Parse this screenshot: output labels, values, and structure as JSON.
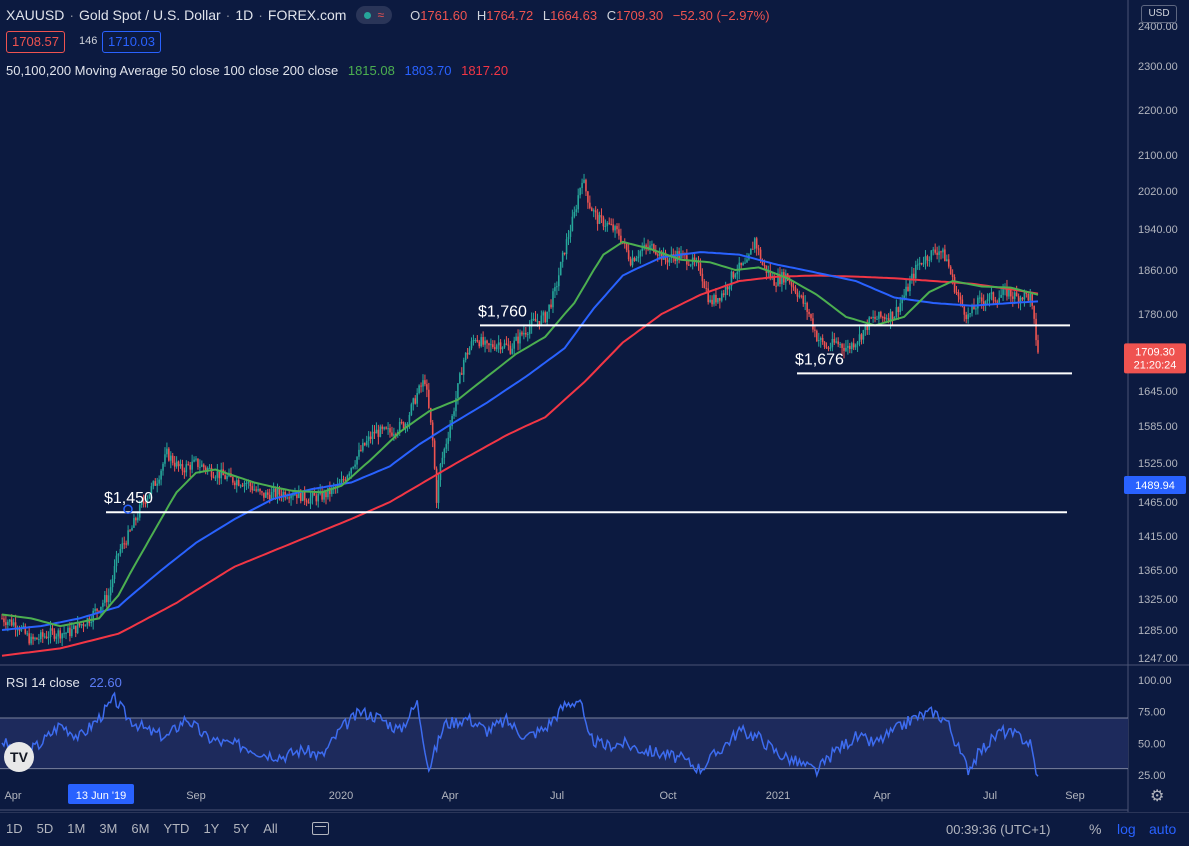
{
  "header": {
    "symbol": "XAUUSD",
    "name": "Gold Spot / U.S. Dollar",
    "interval": "1D",
    "source": "FOREX.com",
    "ohlc": {
      "o_label": "O",
      "o": "1761.60",
      "h_label": "H",
      "h": "1764.72",
      "l_label": "L",
      "l": "1664.63",
      "c_label": "C",
      "c": "1709.30",
      "change": "−52.30 (−2.97%)"
    },
    "bid": "1708.57",
    "spread": "146",
    "ask": "1710.03"
  },
  "indicators": {
    "ma_label": "50,100,200 Moving Average 50 close 100 close 200 close",
    "ma50_value": "1815.08",
    "ma100_value": "1803.70",
    "ma200_value": "1817.20",
    "rsi_label": "RSI 14 close",
    "rsi_value": "22.60"
  },
  "currency_button": "USD",
  "colors": {
    "background": "#0c1a40",
    "up": "#26a69a",
    "down": "#ef5350",
    "ma50": "#4caf50",
    "ma100": "#2962ff",
    "ma200": "#f23645",
    "rsi": "#3d6cf0",
    "level_lines": "#ffffff"
  },
  "chart_data": {
    "type": "candlestick",
    "x_axis_labels": [
      "Apr",
      "13 Jun '19",
      "Sep",
      "2020",
      "Apr",
      "Jul",
      "Oct",
      "2021",
      "Apr",
      "Jul",
      "Sep"
    ],
    "y_axis_ticks": [
      "2400.00",
      "2300.00",
      "2200.00",
      "2100.00",
      "2020.00",
      "1940.00",
      "1860.00",
      "1780.00",
      "1645.00",
      "1585.00",
      "1525.00",
      "1465.00",
      "1415.00",
      "1365.00",
      "1325.00",
      "1285.00",
      "1247.00"
    ],
    "current_price_label": "1709.30",
    "countdown_label": "21:20:24",
    "crosshair_price_label": "1489.94",
    "price_path": [
      [
        0,
        1300
      ],
      [
        8,
        1292
      ],
      [
        15,
        1270
      ],
      [
        25,
        1280
      ],
      [
        35,
        1282
      ],
      [
        45,
        1300
      ],
      [
        55,
        1330
      ],
      [
        60,
        1390
      ],
      [
        66,
        1420
      ],
      [
        72,
        1460
      ],
      [
        80,
        1500
      ],
      [
        85,
        1540
      ],
      [
        92,
        1515
      ],
      [
        100,
        1525
      ],
      [
        110,
        1510
      ],
      [
        118,
        1500
      ],
      [
        126,
        1495
      ],
      [
        134,
        1475
      ],
      [
        142,
        1478
      ],
      [
        150,
        1480
      ],
      [
        158,
        1470
      ],
      [
        166,
        1475
      ],
      [
        174,
        1490
      ],
      [
        180,
        1520
      ],
      [
        186,
        1550
      ],
      [
        192,
        1575
      ],
      [
        200,
        1575
      ],
      [
        208,
        1590
      ],
      [
        214,
        1640
      ],
      [
        218,
        1665
      ],
      [
        222,
        1560
      ],
      [
        224,
        1470
      ],
      [
        226,
        1520
      ],
      [
        232,
        1600
      ],
      [
        238,
        1700
      ],
      [
        244,
        1740
      ],
      [
        250,
        1720
      ],
      [
        256,
        1730
      ],
      [
        262,
        1720
      ],
      [
        268,
        1745
      ],
      [
        274,
        1765
      ],
      [
        280,
        1775
      ],
      [
        285,
        1820
      ],
      [
        290,
        1900
      ],
      [
        295,
        1970
      ],
      [
        299,
        2050
      ],
      [
        303,
        1990
      ],
      [
        307,
        1960
      ],
      [
        312,
        1950
      ],
      [
        318,
        1930
      ],
      [
        324,
        1880
      ],
      [
        330,
        1900
      ],
      [
        336,
        1905
      ],
      [
        342,
        1880
      ],
      [
        348,
        1890
      ],
      [
        354,
        1880
      ],
      [
        360,
        1860
      ],
      [
        365,
        1800
      ],
      [
        372,
        1820
      ],
      [
        378,
        1860
      ],
      [
        384,
        1870
      ],
      [
        388,
        1920
      ],
      [
        392,
        1870
      ],
      [
        398,
        1840
      ],
      [
        404,
        1850
      ],
      [
        410,
        1820
      ],
      [
        416,
        1780
      ],
      [
        420,
        1740
      ],
      [
        425,
        1720
      ],
      [
        430,
        1730
      ],
      [
        436,
        1720
      ],
      [
        442,
        1740
      ],
      [
        448,
        1770
      ],
      [
        454,
        1775
      ],
      [
        460,
        1780
      ],
      [
        466,
        1820
      ],
      [
        472,
        1870
      ],
      [
        478,
        1890
      ],
      [
        483,
        1900
      ],
      [
        487,
        1880
      ],
      [
        490,
        1840
      ],
      [
        494,
        1800
      ],
      [
        498,
        1775
      ],
      [
        503,
        1800
      ],
      [
        508,
        1810
      ],
      [
        513,
        1810
      ],
      [
        518,
        1820
      ],
      [
        523,
        1810
      ],
      [
        527,
        1815
      ],
      [
        530,
        1810
      ],
      [
        534,
        1715
      ]
    ],
    "ma50_path": [
      [
        0,
        1305
      ],
      [
        15,
        1300
      ],
      [
        30,
        1290
      ],
      [
        50,
        1300
      ],
      [
        60,
        1330
      ],
      [
        70,
        1380
      ],
      [
        80,
        1430
      ],
      [
        90,
        1480
      ],
      [
        100,
        1510
      ],
      [
        110,
        1515
      ],
      [
        120,
        1505
      ],
      [
        130,
        1495
      ],
      [
        140,
        1488
      ],
      [
        150,
        1482
      ],
      [
        165,
        1480
      ],
      [
        175,
        1490
      ],
      [
        190,
        1530
      ],
      [
        205,
        1575
      ],
      [
        220,
        1610
      ],
      [
        235,
        1630
      ],
      [
        250,
        1670
      ],
      [
        265,
        1710
      ],
      [
        280,
        1740
      ],
      [
        295,
        1800
      ],
      [
        310,
        1890
      ],
      [
        320,
        1915
      ],
      [
        335,
        1900
      ],
      [
        350,
        1880
      ],
      [
        365,
        1875
      ],
      [
        378,
        1860
      ],
      [
        390,
        1865
      ],
      [
        405,
        1845
      ],
      [
        420,
        1815
      ],
      [
        435,
        1775
      ],
      [
        450,
        1760
      ],
      [
        465,
        1775
      ],
      [
        478,
        1820
      ],
      [
        490,
        1840
      ],
      [
        505,
        1830
      ],
      [
        520,
        1828
      ],
      [
        534,
        1815
      ]
    ],
    "ma100_path": [
      [
        0,
        1285
      ],
      [
        20,
        1290
      ],
      [
        40,
        1300
      ],
      [
        60,
        1315
      ],
      [
        80,
        1360
      ],
      [
        100,
        1405
      ],
      [
        120,
        1440
      ],
      [
        140,
        1470
      ],
      [
        160,
        1485
      ],
      [
        180,
        1495
      ],
      [
        200,
        1520
      ],
      [
        215,
        1555
      ],
      [
        230,
        1585
      ],
      [
        250,
        1625
      ],
      [
        270,
        1670
      ],
      [
        290,
        1720
      ],
      [
        305,
        1790
      ],
      [
        320,
        1850
      ],
      [
        340,
        1885
      ],
      [
        360,
        1895
      ],
      [
        380,
        1890
      ],
      [
        400,
        1870
      ],
      [
        420,
        1855
      ],
      [
        440,
        1840
      ],
      [
        460,
        1810
      ],
      [
        480,
        1800
      ],
      [
        500,
        1795
      ],
      [
        520,
        1800
      ],
      [
        534,
        1803
      ]
    ],
    "ma200_path": [
      [
        0,
        1250
      ],
      [
        30,
        1260
      ],
      [
        60,
        1280
      ],
      [
        90,
        1320
      ],
      [
        120,
        1370
      ],
      [
        150,
        1405
      ],
      [
        180,
        1440
      ],
      [
        200,
        1465
      ],
      [
        220,
        1500
      ],
      [
        240,
        1535
      ],
      [
        260,
        1570
      ],
      [
        280,
        1600
      ],
      [
        300,
        1660
      ],
      [
        320,
        1730
      ],
      [
        340,
        1780
      ],
      [
        360,
        1815
      ],
      [
        380,
        1840
      ],
      [
        400,
        1848
      ],
      [
        420,
        1850
      ],
      [
        440,
        1848
      ],
      [
        460,
        1845
      ],
      [
        480,
        1840
      ],
      [
        500,
        1835
      ],
      [
        520,
        1825
      ],
      [
        534,
        1817
      ]
    ],
    "levels": [
      {
        "label": "$1,450",
        "price": 1450,
        "from": 0.0,
        "to": 1.0
      },
      {
        "label": "$1,760",
        "price": 1760,
        "from": 0.45,
        "to": 1.0
      },
      {
        "label": "$1,676",
        "price": 1676,
        "from": 0.75,
        "to": 1.0
      }
    ],
    "rsi": {
      "label_ticks": [
        "100.00",
        "75.00",
        "50.00",
        "25.00"
      ],
      "overbought": 70,
      "oversold": 30,
      "path": [
        [
          0,
          52
        ],
        [
          10,
          40
        ],
        [
          20,
          50
        ],
        [
          30,
          65
        ],
        [
          40,
          55
        ],
        [
          50,
          70
        ],
        [
          58,
          85
        ],
        [
          65,
          70
        ],
        [
          75,
          60
        ],
        [
          85,
          55
        ],
        [
          95,
          70
        ],
        [
          105,
          55
        ],
        [
          115,
          50
        ],
        [
          125,
          48
        ],
        [
          135,
          42
        ],
        [
          145,
          40
        ],
        [
          155,
          45
        ],
        [
          165,
          40
        ],
        [
          175,
          62
        ],
        [
          185,
          75
        ],
        [
          195,
          70
        ],
        [
          205,
          60
        ],
        [
          214,
          82
        ],
        [
          220,
          30
        ],
        [
          228,
          65
        ],
        [
          240,
          70
        ],
        [
          250,
          60
        ],
        [
          260,
          68
        ],
        [
          270,
          55
        ],
        [
          280,
          62
        ],
        [
          290,
          80
        ],
        [
          298,
          85
        ],
        [
          302,
          55
        ],
        [
          310,
          48
        ],
        [
          320,
          50
        ],
        [
          330,
          45
        ],
        [
          340,
          42
        ],
        [
          350,
          38
        ],
        [
          360,
          30
        ],
        [
          370,
          45
        ],
        [
          380,
          60
        ],
        [
          390,
          55
        ],
        [
          400,
          42
        ],
        [
          410,
          35
        ],
        [
          420,
          28
        ],
        [
          430,
          45
        ],
        [
          440,
          55
        ],
        [
          450,
          50
        ],
        [
          460,
          60
        ],
        [
          470,
          70
        ],
        [
          480,
          75
        ],
        [
          487,
          68
        ],
        [
          494,
          42
        ],
        [
          498,
          30
        ],
        [
          505,
          45
        ],
        [
          515,
          60
        ],
        [
          525,
          55
        ],
        [
          530,
          50
        ],
        [
          534,
          22
        ]
      ]
    }
  },
  "bottom_bar": {
    "ranges": [
      "1D",
      "5D",
      "1M",
      "3M",
      "6M",
      "YTD",
      "1Y",
      "5Y",
      "All"
    ],
    "clock": "00:39:36 (UTC+1)",
    "percent": "%",
    "log": "log",
    "auto": "auto"
  }
}
